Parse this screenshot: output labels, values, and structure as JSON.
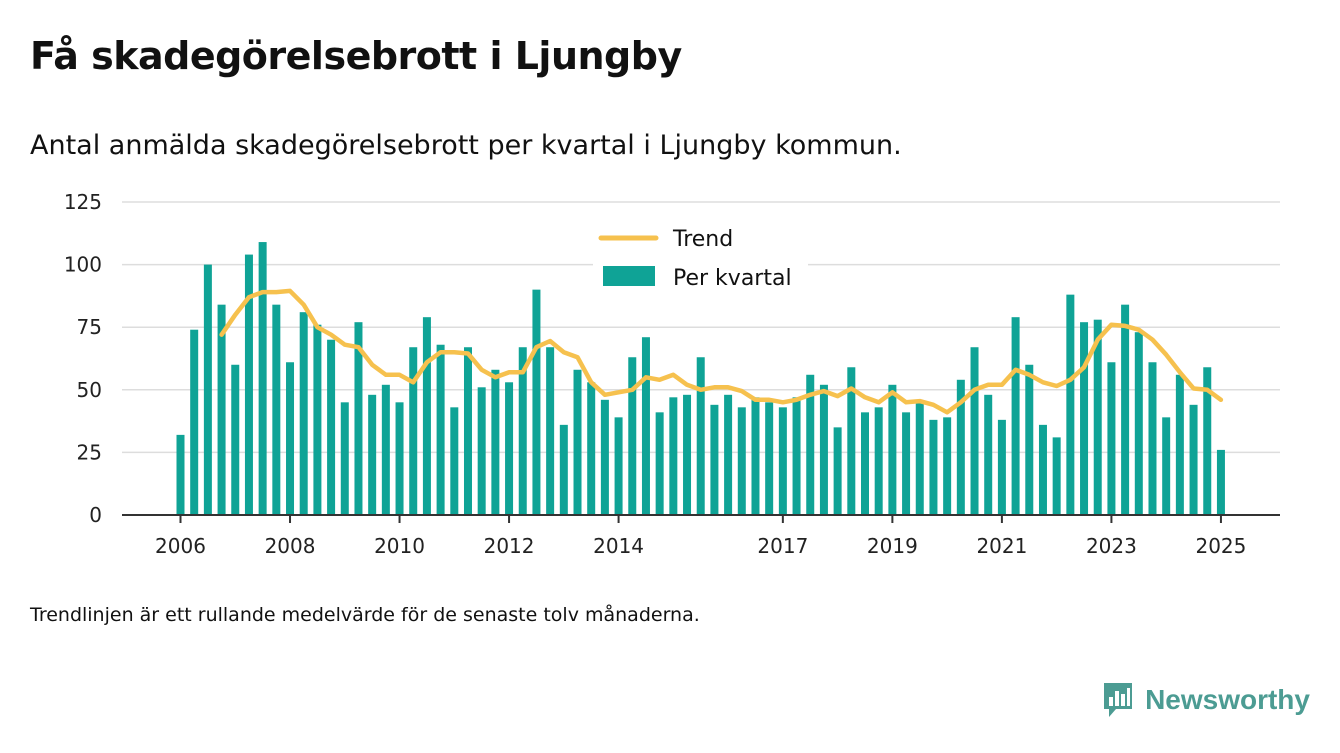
{
  "header": {
    "title": "Få skadegörelsebrott i Ljungby",
    "subtitle": "Antal anmälda skadegörelsebrott per kvartal i Ljungby kommun."
  },
  "footnote": "Trendlinjen är ett rullande medelvärde för de senaste tolv månaderna.",
  "brand": {
    "name": "Newsworthy",
    "icon": "newsworthy-logo-icon",
    "color": "#4c9c93"
  },
  "colors": {
    "bar": "#0fa396",
    "trend": "#f6c14e",
    "grid": "#dddddd",
    "axis": "#333333"
  },
  "chart_data": {
    "type": "bar",
    "title": "Få skadegörelsebrott i Ljungby",
    "ylim": [
      0,
      125
    ],
    "yticks": [
      0,
      25,
      50,
      75,
      100,
      125
    ],
    "xticks": [
      "2006",
      "2008",
      "2010",
      "2012",
      "2014",
      "2017",
      "2019",
      "2021",
      "2023",
      "2025"
    ],
    "xtick_quarter_index": [
      0,
      8,
      16,
      24,
      32,
      44,
      52,
      60,
      68,
      76
    ],
    "grid": true,
    "legend_position": "top-center",
    "series": [
      {
        "name": "Per kvartal",
        "type": "bar",
        "values": [
          32,
          74,
          100,
          84,
          60,
          104,
          109,
          84,
          61,
          81,
          76,
          70,
          45,
          77,
          48,
          52,
          45,
          67,
          79,
          68,
          43,
          67,
          51,
          58,
          53,
          67,
          90,
          67,
          36,
          58,
          53,
          46,
          39,
          63,
          71,
          41,
          47,
          48,
          63,
          44,
          48,
          43,
          47,
          45,
          43,
          47,
          56,
          52,
          35,
          59,
          41,
          43,
          52,
          41,
          45,
          38,
          39,
          54,
          67,
          48,
          38,
          79,
          60,
          36,
          31,
          88,
          77,
          78,
          61,
          84,
          73,
          61,
          39,
          56,
          44,
          59,
          26
        ]
      },
      {
        "name": "Trend",
        "type": "line",
        "start_index": 3,
        "values": [
          72,
          80,
          87,
          89,
          89,
          89.5,
          84,
          75,
          72,
          68,
          67,
          60,
          56,
          56,
          53,
          61,
          65,
          65,
          64.5,
          58,
          55,
          57,
          57,
          67,
          69.5,
          65,
          63,
          53,
          48,
          49,
          50,
          55,
          54,
          56,
          52,
          50,
          51,
          51,
          49.5,
          46,
          46,
          45,
          46,
          48,
          49.5,
          47.5,
          50.5,
          47,
          45,
          49,
          45,
          45.5,
          44,
          41,
          45,
          50,
          52,
          52,
          58,
          56,
          53,
          51.5,
          54,
          59,
          70,
          76,
          75.5,
          74,
          70,
          64,
          57,
          50.5,
          50,
          46
        ]
      }
    ]
  }
}
